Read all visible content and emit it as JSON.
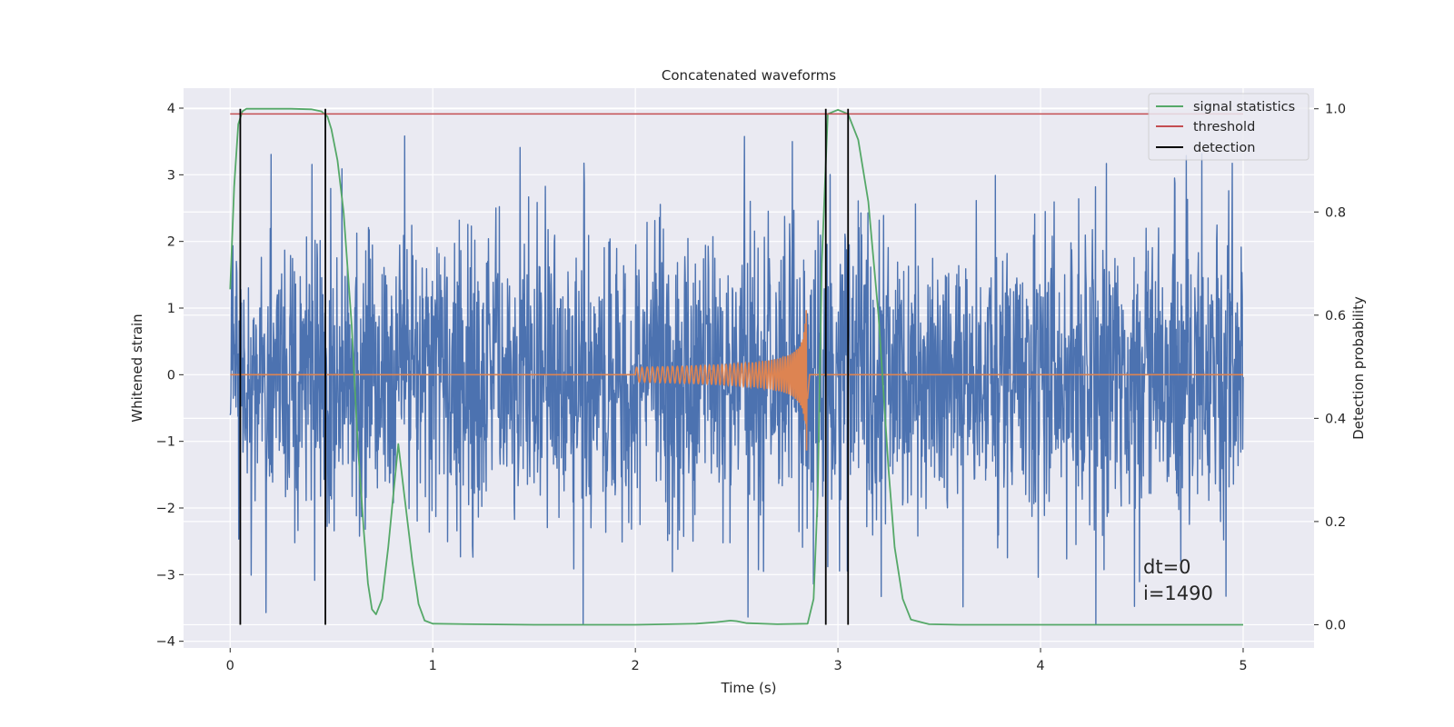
{
  "chart_data": {
    "type": "line",
    "title": "Concatenated waveforms",
    "xlabel": "Time (s)",
    "ylabel": "Whitened strain",
    "y2label": "Detection probability",
    "xlim": [
      -0.23,
      5.35
    ],
    "ylim": [
      -4.1,
      4.3
    ],
    "y2lim": [
      -0.045,
      1.04
    ],
    "xticks": [
      0,
      1,
      2,
      3,
      4,
      5
    ],
    "yticks": [
      -4,
      -3,
      -2,
      -1,
      0,
      1,
      2,
      3,
      4
    ],
    "y2ticks": [
      0.0,
      0.2,
      0.4,
      0.6,
      0.8,
      1.0
    ],
    "xtick_labels": [
      "0",
      "1",
      "2",
      "3",
      "4",
      "5"
    ],
    "ytick_labels": [
      "−4",
      "−3",
      "−2",
      "−1",
      "0",
      "1",
      "2",
      "3",
      "4"
    ],
    "y2tick_labels": [
      "0.0",
      "0.2",
      "0.4",
      "0.6",
      "0.8",
      "1.0"
    ],
    "grid": true,
    "legend_position": "top-right",
    "legend": [
      "signal statistics",
      "threshold",
      "detection"
    ],
    "colors": {
      "strain": "#4c72b0",
      "chirp": "#dd8452",
      "signal_statistics": "#55a868",
      "threshold": "#c44e52",
      "detection": "#000000",
      "background": "#eaeaf2",
      "grid": "#ffffff"
    },
    "series": [
      {
        "name": "signal statistics",
        "axis": "right",
        "x": [
          0.0,
          0.02,
          0.04,
          0.06,
          0.08,
          0.12,
          0.2,
          0.3,
          0.4,
          0.45,
          0.48,
          0.5,
          0.53,
          0.56,
          0.6,
          0.63,
          0.66,
          0.68,
          0.7,
          0.72,
          0.75,
          0.78,
          0.8,
          0.83,
          0.86,
          0.9,
          0.93,
          0.96,
          1.0,
          1.2,
          1.5,
          2.0,
          2.3,
          2.4,
          2.47,
          2.5,
          2.55,
          2.7,
          2.85,
          2.88,
          2.9,
          2.92,
          2.95,
          3.0,
          3.05,
          3.1,
          3.15,
          3.2,
          3.25,
          3.28,
          3.32,
          3.36,
          3.45,
          3.6,
          4.0,
          4.5,
          5.0
        ],
        "values": [
          0.65,
          0.85,
          0.97,
          0.995,
          1.0,
          1.0,
          1.0,
          1.0,
          0.999,
          0.995,
          0.985,
          0.96,
          0.9,
          0.8,
          0.58,
          0.35,
          0.18,
          0.08,
          0.03,
          0.02,
          0.05,
          0.15,
          0.23,
          0.35,
          0.25,
          0.12,
          0.04,
          0.008,
          0.002,
          0.001,
          0.0,
          0.0,
          0.002,
          0.005,
          0.008,
          0.007,
          0.003,
          0.001,
          0.002,
          0.05,
          0.25,
          0.7,
          0.99,
          0.998,
          0.99,
          0.94,
          0.82,
          0.6,
          0.3,
          0.15,
          0.05,
          0.01,
          0.001,
          0.0,
          0.0,
          0.0,
          0.0
        ]
      },
      {
        "name": "threshold",
        "axis": "right",
        "x": [
          0.0,
          5.0
        ],
        "values": [
          0.99,
          0.99
        ]
      },
      {
        "name": "detection",
        "axis": "right",
        "x": [
          0.05,
          0.47,
          2.94,
          3.05
        ],
        "values": [
          [
            0.0,
            1.0
          ],
          [
            0.0,
            1.0
          ],
          [
            0.0,
            1.0
          ],
          [
            0.0,
            1.0
          ]
        ]
      },
      {
        "name": "",
        "axis": "left",
        "description_values": "whitened strain noise, x from 0 to 5 s, amplitude mostly within -3 to 3 with spikes to 3.9 and -3.7"
      },
      {
        "name": "",
        "axis": "left",
        "x_range": [
          2.0,
          2.85
        ],
        "peak_amplitude": 1.4
      }
    ],
    "annotations": [
      "dt=0",
      "i=1490"
    ]
  }
}
